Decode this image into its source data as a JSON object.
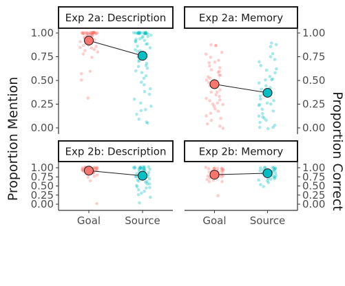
{
  "colors": {
    "goal": "#F8766D",
    "source": "#00BFC4",
    "axis": "#333333",
    "tick_text": "#4d4d4d",
    "connector": "#1a1a1a"
  },
  "chart_data": {
    "type": "scatter",
    "description": "Faceted jitter strip plots with mean points connected by lines",
    "left_ylabel": "Proportion Mention",
    "right_ylabel": "Proportion Correct",
    "categories": [
      "Goal",
      "Source"
    ],
    "ylim": [
      0,
      1
    ],
    "yticks": [
      "0.00",
      "0.25",
      "0.50",
      "0.75",
      "1.00"
    ],
    "ytick_values": [
      0,
      0.25,
      0.5,
      0.75,
      1
    ],
    "grid": false,
    "legend": "none",
    "panels": [
      {
        "title": "Exp 2a: Description",
        "axis": "left",
        "means": {
          "Goal": 0.92,
          "Source": 0.76
        },
        "points": {
          "Goal": [
            1,
            1,
            1,
            1,
            1,
            1,
            1,
            1,
            1,
            1,
            1,
            1,
            1,
            1,
            1,
            1,
            1,
            1,
            1,
            1,
            1,
            1,
            1,
            1,
            0.98,
            0.98,
            0.97,
            0.97,
            0.96,
            0.96,
            0.95,
            0.95,
            0.94,
            0.94,
            0.93,
            0.92,
            0.92,
            0.91,
            0.9,
            0.89,
            0.88,
            0.87,
            0.86,
            0.85,
            0.84,
            0.83,
            0.82,
            0.8,
            0.78,
            0.75,
            0.6,
            0.58,
            0.5,
            0.32
          ],
          "Source": [
            1,
            1,
            1,
            1,
            1,
            1,
            1,
            1,
            1,
            1,
            1,
            1,
            1,
            1,
            1,
            1,
            1,
            1,
            1,
            0.98,
            0.97,
            0.96,
            0.95,
            0.94,
            0.93,
            0.92,
            0.91,
            0.9,
            0.89,
            0.88,
            0.86,
            0.84,
            0.83,
            0.82,
            0.8,
            0.78,
            0.75,
            0.72,
            0.7,
            0.68,
            0.66,
            0.64,
            0.62,
            0.6,
            0.58,
            0.55,
            0.52,
            0.48,
            0.45,
            0.42,
            0.38,
            0.35,
            0.3,
            0.27,
            0.22,
            0.18,
            0.15,
            0.1,
            0.07,
            0.05,
            0.2
          ]
        }
      },
      {
        "title": "Exp 2a: Memory",
        "axis": "right",
        "means": {
          "Goal": 0.46,
          "Source": 0.37
        },
        "points": {
          "Goal": [
            0.88,
            0.87,
            0.86,
            0.8,
            0.78,
            0.75,
            0.72,
            0.7,
            0.68,
            0.66,
            0.63,
            0.62,
            0.6,
            0.58,
            0.56,
            0.55,
            0.53,
            0.52,
            0.5,
            0.5,
            0.48,
            0.47,
            0.45,
            0.43,
            0.42,
            0.4,
            0.38,
            0.37,
            0.35,
            0.33,
            0.32,
            0.3,
            0.28,
            0.27,
            0.25,
            0.25,
            0.23,
            0.2,
            0.18,
            0.15,
            0.12,
            0.1,
            0.07,
            0.05,
            0.02,
            0.0
          ],
          "Source": [
            0.9,
            0.88,
            0.85,
            0.78,
            0.75,
            0.72,
            0.7,
            0.65,
            0.62,
            0.6,
            0.58,
            0.55,
            0.52,
            0.5,
            0.5,
            0.48,
            0.45,
            0.42,
            0.4,
            0.38,
            0.37,
            0.35,
            0.33,
            0.3,
            0.28,
            0.27,
            0.25,
            0.25,
            0.23,
            0.2,
            0.18,
            0.15,
            0.12,
            0.12,
            0.1,
            0.08,
            0.05,
            0.02,
            0.0,
            0.0,
            0.0
          ]
        }
      },
      {
        "title": "Exp 2b: Description",
        "axis": "left",
        "means": {
          "Goal": 0.92,
          "Source": 0.78
        },
        "points": {
          "Goal": [
            1,
            1,
            1,
            1,
            1,
            1,
            1,
            1,
            1,
            1,
            1,
            1,
            1,
            1,
            1,
            1,
            1,
            1,
            0.98,
            0.98,
            0.97,
            0.96,
            0.96,
            0.95,
            0.94,
            0.93,
            0.92,
            0.92,
            0.91,
            0.9,
            0.89,
            0.88,
            0.87,
            0.86,
            0.85,
            0.84,
            0.82,
            0.8,
            0.78,
            0.75,
            0.62,
            0.0
          ],
          "Source": [
            1,
            1,
            1,
            1,
            1,
            1,
            1,
            1,
            1,
            1,
            1,
            1,
            1,
            0.97,
            0.96,
            0.95,
            0.93,
            0.92,
            0.9,
            0.88,
            0.86,
            0.84,
            0.82,
            0.8,
            0.78,
            0.76,
            0.74,
            0.72,
            0.7,
            0.68,
            0.65,
            0.62,
            0.6,
            0.58,
            0.55,
            0.5,
            0.47,
            0.45,
            0.43,
            0.4,
            0.35,
            0.3,
            0.25,
            0.2,
            0.02
          ]
        }
      },
      {
        "title": "Exp 2b: Memory",
        "axis": "right",
        "means": {
          "Goal": 0.81,
          "Source": 0.85
        },
        "points": {
          "Goal": [
            1,
            1,
            1,
            1,
            1,
            0.98,
            0.97,
            0.96,
            0.95,
            0.94,
            0.93,
            0.92,
            0.9,
            0.9,
            0.88,
            0.87,
            0.86,
            0.85,
            0.84,
            0.83,
            0.82,
            0.8,
            0.8,
            0.78,
            0.77,
            0.76,
            0.75,
            0.72,
            0.7,
            0.68,
            0.65,
            0.62,
            0.6,
            0.25
          ],
          "Source": [
            1,
            1,
            1,
            1,
            1,
            0.98,
            0.97,
            0.96,
            0.95,
            0.94,
            0.93,
            0.92,
            0.9,
            0.9,
            0.88,
            0.87,
            0.86,
            0.85,
            0.84,
            0.82,
            0.8,
            0.78,
            0.76,
            0.75,
            0.72,
            0.7,
            0.68,
            0.66,
            0.62,
            0.58,
            0.55,
            0.5
          ]
        }
      }
    ]
  }
}
